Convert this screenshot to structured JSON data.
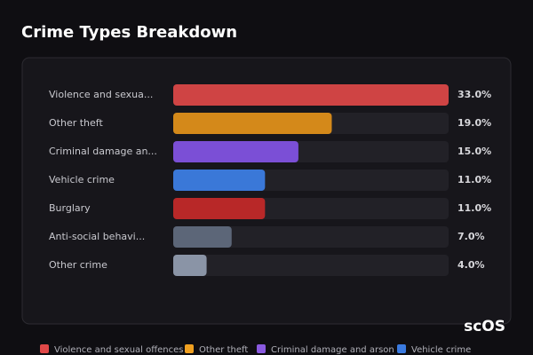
{
  "chart_data": {
    "type": "bar",
    "orientation": "horizontal",
    "title": "Crime Types Breakdown",
    "categories": [
      "Violence and sexua...",
      "Other theft",
      "Criminal damage an...",
      "Vehicle crime",
      "Burglary",
      "Anti-social behavi...",
      "Other crime"
    ],
    "values": [
      33,
      19,
      15,
      11,
      11,
      7,
      4
    ],
    "value_labels": [
      "33.0%",
      "19.0%",
      "15.0%",
      "11.0%",
      "11.0%",
      "7.0%",
      "4.0%"
    ],
    "colors": [
      "#cf4444",
      "#d4891a",
      "#7b4fd6",
      "#3a78d8",
      "#b82828",
      "#5c6678",
      "#8a94a6"
    ],
    "xlim": [
      0,
      33
    ],
    "legend": [
      {
        "name": "Violence and sexual offences",
        "color": "#e04848"
      },
      {
        "name": "Other theft",
        "color": "#f0a020"
      },
      {
        "name": "Criminal damage and arson",
        "color": "#8a5ae0"
      },
      {
        "name": "Vehicle crime",
        "color": "#3a7ae0"
      }
    ],
    "watermark": "scOS"
  }
}
